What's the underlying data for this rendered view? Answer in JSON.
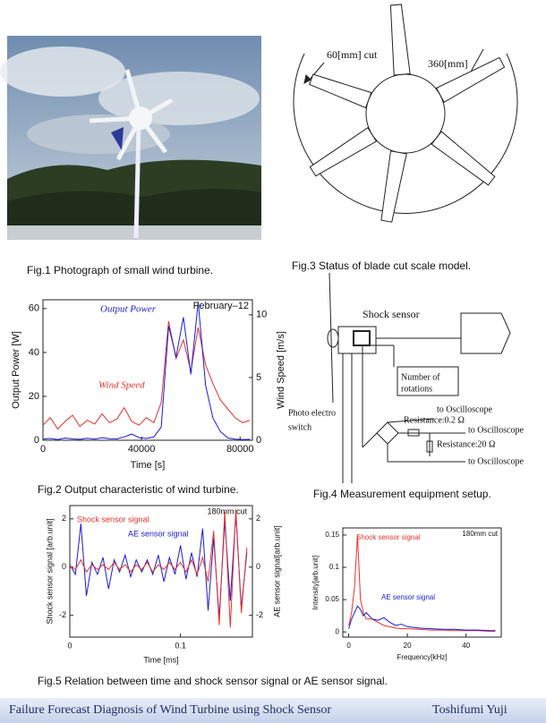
{
  "fig1": {
    "caption": "Fig.1 Photograph of small wind turbine."
  },
  "fig2": {
    "caption": "Fig.2 Output characteristic of wind turbine.",
    "chart": {
      "type": "line",
      "note": "February–12",
      "xlabel": "Time [s]",
      "ylabel": "Output Power [W]",
      "y2label": "Wind Speed [m/s]",
      "xlim": [
        0,
        85000
      ],
      "xticks": [
        0,
        40000,
        80000
      ],
      "ylim": [
        0,
        64
      ],
      "yticks": [
        0,
        20,
        40,
        60
      ],
      "y2lim": [
        0,
        11.2
      ],
      "y2ticks": [
        0,
        5,
        10
      ],
      "x": [
        0,
        3000,
        6000,
        9000,
        12000,
        15000,
        18000,
        21000,
        24000,
        27000,
        30000,
        33000,
        36000,
        39000,
        42000,
        45000,
        48000,
        51000,
        54000,
        57000,
        60000,
        63000,
        66000,
        69000,
        72000,
        75000,
        78000,
        81000,
        84000
      ],
      "series": [
        {
          "name": "Wind Speed",
          "color": "#e8322a",
          "axis": "y2",
          "values": [
            1.2,
            1.8,
            0.9,
            1.5,
            2,
            1.1,
            1.6,
            1.3,
            2.1,
            1.4,
            1.7,
            2.6,
            1.5,
            1.2,
            1.8,
            1.4,
            3,
            9.5,
            6.5,
            8,
            5.5,
            9,
            6,
            4.5,
            3.2,
            2.5,
            1.8,
            1.4,
            1.6
          ]
        },
        {
          "name": "Output Power",
          "color": "#1a1adb",
          "values": [
            0.5,
            0.8,
            0.3,
            1,
            0.6,
            0.4,
            0.9,
            0.5,
            1.2,
            0.7,
            0.6,
            1.5,
            2.8,
            1.2,
            0.8,
            1.5,
            6,
            52,
            38,
            56,
            30,
            63,
            25,
            10,
            4,
            1,
            0.5,
            0.3,
            0.4
          ]
        }
      ]
    }
  },
  "fig3": {
    "caption": "Fig.3  Status of blade cut scale model.",
    "cut_label": "60[mm] cut",
    "diameter_label": "360[mm]"
  },
  "fig4": {
    "caption": "Fig.4 Measurement equipment setup.",
    "shock_sensor": "Shock sensor",
    "rotations": [
      "Number of",
      "rotations"
    ],
    "photo_switch": [
      "Photo electro",
      "switch"
    ],
    "oscilloscope": [
      "to Oscilloscope",
      "to Oscilloscope",
      "to Oscilloscope"
    ],
    "resistance": [
      "Resistance:0.2 Ω",
      "Resistance:20 Ω"
    ]
  },
  "fig5": {
    "caption": "Fig.5 Relation between time and shock sensor signal or AE  sensor signal.",
    "time_chart": {
      "type": "line",
      "note": "180mm cut",
      "xlabel": "Time [ms]",
      "ylabel": "Shock sensor signal [arb.unit]",
      "y2label": "AE sensor signal[arb.unit]",
      "xlim": [
        0,
        0.165
      ],
      "xticks": [
        0,
        0.1
      ],
      "ylim": [
        -2.9,
        2.55
      ],
      "yticks": [
        -2,
        0,
        2
      ],
      "y2lim": [
        -2.9,
        2.55
      ],
      "y2ticks": [
        -2,
        0,
        2
      ],
      "x": [
        0,
        0.005,
        0.01,
        0.015,
        0.02,
        0.025,
        0.03,
        0.035,
        0.04,
        0.045,
        0.05,
        0.055,
        0.06,
        0.065,
        0.07,
        0.075,
        0.08,
        0.085,
        0.09,
        0.095,
        0.1,
        0.105,
        0.11,
        0.115,
        0.12,
        0.125,
        0.13,
        0.135,
        0.14,
        0.145,
        0.15,
        0.155,
        0.16
      ],
      "series": [
        {
          "name": "AE sensor signal",
          "color": "#1a1adb",
          "axis": "y2",
          "values": [
            0.1,
            -0.3,
            1.8,
            -1.2,
            0.2,
            -0.3,
            0.4,
            -0.9,
            0.3,
            -0.2,
            0.5,
            -0.4,
            0.3,
            -0.2,
            0.3,
            -0.3,
            0.5,
            -0.6,
            0.4,
            -0.3,
            0.9,
            -0.5,
            0.6,
            -0.4,
            1.6,
            -1.8,
            1.2,
            -2.1,
            1.9,
            -1.4,
            2.2,
            -1.7,
            0.6
          ]
        },
        {
          "name": "Shock sensor signal",
          "color": "#e8322a",
          "values": [
            0.05,
            -0.1,
            0.3,
            -0.2,
            0.1,
            -0.1,
            0.1,
            -0.1,
            0.2,
            -0.1,
            0.1,
            -0.2,
            0.1,
            -0.1,
            0.2,
            -0.2,
            0.1,
            -0.1,
            0.2,
            -0.1,
            0.2,
            -0.2,
            0.3,
            -0.3,
            0.4,
            -0.6,
            1.5,
            -2.4,
            2.3,
            -2.5,
            2.4,
            -1.9,
            0.8
          ]
        }
      ]
    },
    "spectrum_chart": {
      "type": "line",
      "note": "180mm cut",
      "xlabel": "Frequency[kHz]",
      "ylabel": "Intensity[arb.unit]",
      "xlim": [
        -2,
        52
      ],
      "xticks": [
        0,
        20,
        40
      ],
      "ylim": [
        -0.008,
        0.161
      ],
      "yticks": [
        0,
        0.05,
        0.1,
        0.15
      ],
      "x": [
        0,
        1,
        2,
        3,
        4,
        5,
        6,
        8,
        10,
        12,
        14,
        16,
        18,
        20,
        24,
        28,
        32,
        36,
        40,
        44,
        48,
        50
      ],
      "series": [
        {
          "name": "Shock sensor signal",
          "color": "#e8322a",
          "values": [
            0.01,
            0.03,
            0.07,
            0.15,
            0.05,
            0.03,
            0.02,
            0.02,
            0.015,
            0.01,
            0.008,
            0.006,
            0.005,
            0.005,
            0.004,
            0.003,
            0.003,
            0.002,
            0.002,
            0.002,
            0.001,
            0.001
          ]
        },
        {
          "name": "AE sensor signal",
          "color": "#1a1adb",
          "values": [
            0.005,
            0.02,
            0.03,
            0.04,
            0.035,
            0.025,
            0.03,
            0.02,
            0.018,
            0.022,
            0.015,
            0.01,
            0.012,
            0.008,
            0.006,
            0.005,
            0.004,
            0.004,
            0.003,
            0.003,
            0.002,
            0.002
          ]
        }
      ]
    }
  },
  "footer": {
    "title": "Failure Forecast Diagnosis of Wind Turbine using Shock Sensor",
    "author": "Toshifumi  Yuji"
  }
}
